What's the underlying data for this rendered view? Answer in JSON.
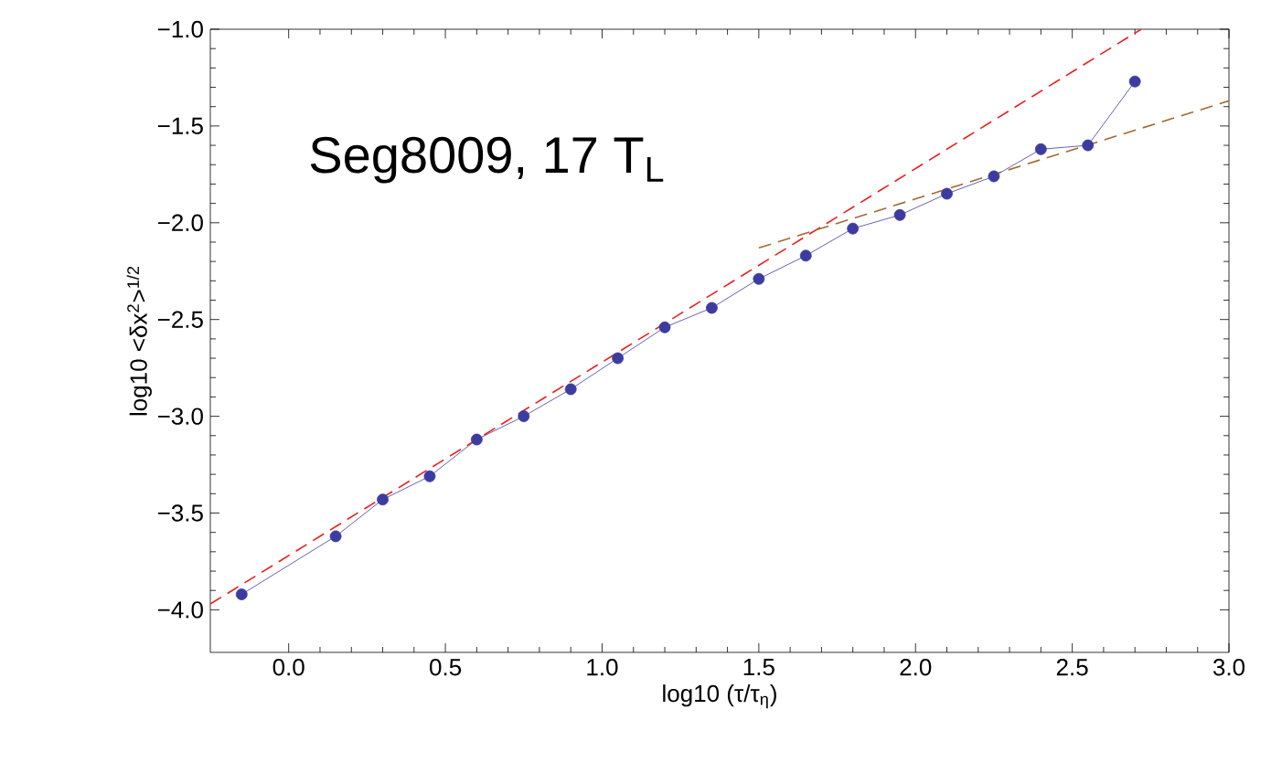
{
  "chart_data": {
    "type": "line",
    "xlabel": "log10 (τ/τ$_{η}$)",
    "ylabel": "log10 <δx$^{2}$>$^{1/2}$",
    "annotations": [
      "Seg8009, 17 T$_{L}$"
    ],
    "xlim": [
      -0.25,
      3.0
    ],
    "ylim": [
      -4.22,
      -1.0
    ],
    "xticks": [
      {
        "value": 0,
        "label": "0.0"
      },
      {
        "value": 0.5,
        "label": "0.5"
      },
      {
        "value": 1,
        "label": "1.0"
      },
      {
        "value": 1.5,
        "label": "1.5"
      },
      {
        "value": 2,
        "label": "2.0"
      },
      {
        "value": 2.5,
        "label": "2.5"
      },
      {
        "value": 3,
        "label": "3.0"
      }
    ],
    "yticks": [
      {
        "value": -4,
        "label": "−4.0"
      },
      {
        "value": -3.5,
        "label": "−3.5"
      },
      {
        "value": -3,
        "label": "−3.0"
      },
      {
        "value": -2.5,
        "label": "−2.5"
      },
      {
        "value": -2,
        "label": "−2.0"
      },
      {
        "value": -1.5,
        "label": "−1.5"
      },
      {
        "value": -1,
        "label": "−1.0"
      }
    ],
    "grid": false,
    "marker": "circle",
    "line_style": "solid",
    "x": [
      -0.15,
      0.15,
      0.3,
      0.45,
      0.6,
      0.75,
      0.9,
      1.05,
      1.2,
      1.35,
      1.5,
      1.65,
      1.8,
      1.95,
      2.1,
      2.25,
      2.4,
      2.55,
      2.7
    ],
    "series": [
      {
        "color": "#3c3ca0",
        "values": [
          -3.92,
          -3.62,
          -3.43,
          -3.31,
          -3.12,
          -3.0,
          -2.86,
          -2.7,
          -2.54,
          -2.44,
          -2.29,
          -2.17,
          -2.03,
          -1.96,
          -1.85,
          -1.76,
          -1.62,
          -1.6,
          -1.27
        ]
      },
      {
        "type": "line",
        "color": "#ee1c1c",
        "marker": "none",
        "line_style": "dashed",
        "x": [
          -0.25,
          2.72
        ],
        "values": [
          -3.97,
          -1.0
        ]
      },
      {
        "type": "line",
        "color": "#a06a30",
        "marker": "none",
        "line_style": "dashed",
        "x": [
          1.5,
          3.0
        ],
        "values": [
          -2.13,
          -1.37
        ]
      }
    ]
  }
}
